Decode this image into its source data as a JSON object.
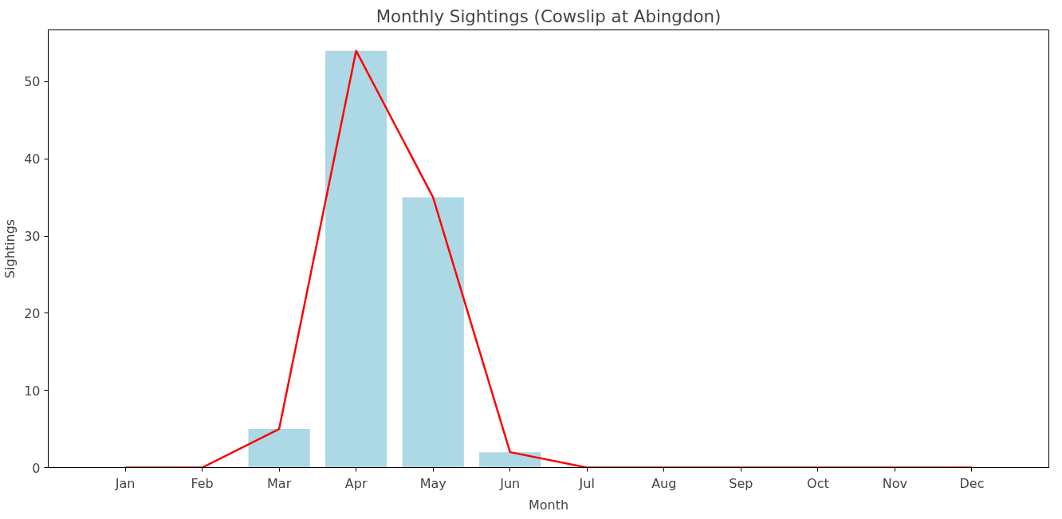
{
  "chart_data": {
    "type": "bar",
    "title": "Monthly Sightings (Cowslip at Abingdon)",
    "xlabel": "Month",
    "ylabel": "Sightings",
    "categories": [
      "Jan",
      "Feb",
      "Mar",
      "Apr",
      "May",
      "Jun",
      "Jul",
      "Aug",
      "Sep",
      "Oct",
      "Nov",
      "Dec"
    ],
    "series": [
      {
        "color": "#add8e6",
        "values": [
          0,
          0,
          5,
          54,
          35,
          2,
          0,
          0,
          0,
          0,
          0,
          0
        ]
      },
      {
        "type": "line",
        "color": "#ff0000",
        "values": [
          0,
          0,
          5,
          54,
          35,
          2,
          0,
          0,
          0,
          0,
          0,
          0
        ]
      }
    ],
    "ylim": [
      0,
      56.7
    ],
    "yticks": [
      0,
      10,
      20,
      30,
      40,
      50
    ],
    "grid": false
  }
}
